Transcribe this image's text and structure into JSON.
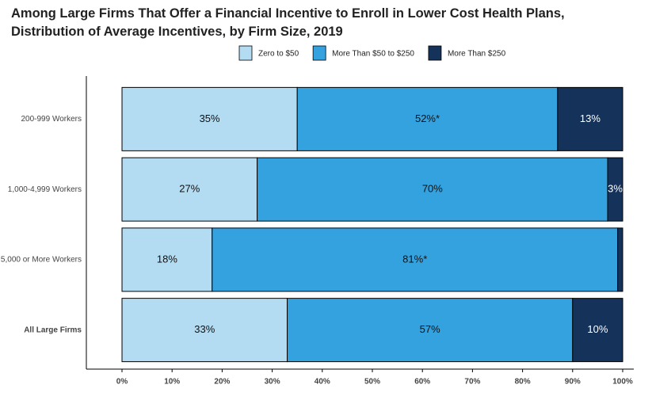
{
  "chart_data": {
    "type": "stacked-bar-horizontal",
    "title": [
      "Among Large Firms That Offer a Financial Incentive to Enroll in Lower Cost Health Plans,",
      "Distribution of Average Incentives, by Firm Size, 2019"
    ],
    "categories": [
      "200-999 Workers",
      "1,000-4,999 Workers",
      "5,000 or More Workers",
      "All Large Firms"
    ],
    "series": [
      {
        "name": "Zero to $50",
        "color": "#b3dcf2",
        "values": [
          35,
          27,
          18,
          33
        ],
        "value_labels": [
          "35%",
          "27%",
          "18%",
          "33%"
        ]
      },
      {
        "name": "More Than $50 to $250",
        "color": "#35a2e0",
        "values": [
          52,
          70,
          81,
          57
        ],
        "value_labels": [
          "52%*",
          "70%",
          "81%*",
          "57%"
        ]
      },
      {
        "name": "More Than $250",
        "color": "#14325a",
        "values": [
          13,
          3,
          1,
          10
        ],
        "value_labels": [
          "13%",
          "3%",
          null,
          "10%"
        ]
      }
    ],
    "xlim": [
      0,
      100
    ],
    "xticks": [
      {
        "value": 0,
        "label": "0%"
      },
      {
        "value": 10,
        "label": "10%"
      },
      {
        "value": 20,
        "label": "20%"
      },
      {
        "value": 30,
        "label": "30%"
      },
      {
        "value": 40,
        "label": "40%"
      },
      {
        "value": 50,
        "label": "50%"
      },
      {
        "value": 60,
        "label": "60%"
      },
      {
        "value": 70,
        "label": "70%"
      },
      {
        "value": 80,
        "label": "80%"
      },
      {
        "value": 90,
        "label": "90%"
      },
      {
        "value": 100,
        "label": "100%"
      }
    ],
    "legend": "top"
  }
}
